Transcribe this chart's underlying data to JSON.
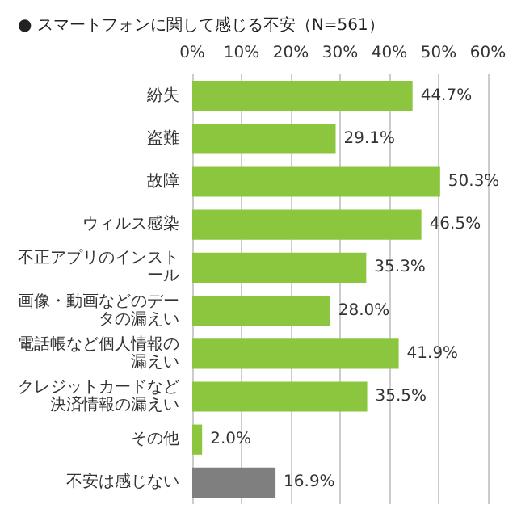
{
  "chart_data": {
    "type": "bar",
    "orientation": "horizontal",
    "title": "● スマートフォンに関して感じる不安（N=561）",
    "categories": [
      "紛失",
      "盗難",
      "故障",
      "ウィルス感染",
      "不正アプリのインストール",
      "画像・動画などのデータの漏えい",
      "電話帳など個人情報の漏えい",
      "クレジットカードなど決済情報の漏えい",
      "その他",
      "不安は感じない"
    ],
    "values": [
      44.7,
      29.1,
      50.3,
      46.5,
      35.3,
      28.0,
      41.9,
      35.5,
      2.0,
      16.9
    ],
    "colors": [
      "#8cc63f",
      "#8cc63f",
      "#8cc63f",
      "#8cc63f",
      "#8cc63f",
      "#8cc63f",
      "#8cc63f",
      "#8cc63f",
      "#8cc63f",
      "#7f7f7f"
    ],
    "value_labels": [
      "44.7%",
      "29.1%",
      "50.3%",
      "46.5%",
      "35.3%",
      "28.0%",
      "41.9%",
      "35.5%",
      "2.0%",
      "16.9%"
    ],
    "xlim": [
      0,
      60
    ],
    "xticks": [
      {
        "value": 0,
        "label": "0%"
      },
      {
        "value": 10,
        "label": "10%"
      },
      {
        "value": 20,
        "label": "20%"
      },
      {
        "value": 30,
        "label": "30%"
      },
      {
        "value": 40,
        "label": "40%"
      },
      {
        "value": 50,
        "label": "50%"
      },
      {
        "value": 60,
        "label": "60%"
      }
    ],
    "grid": "x"
  }
}
